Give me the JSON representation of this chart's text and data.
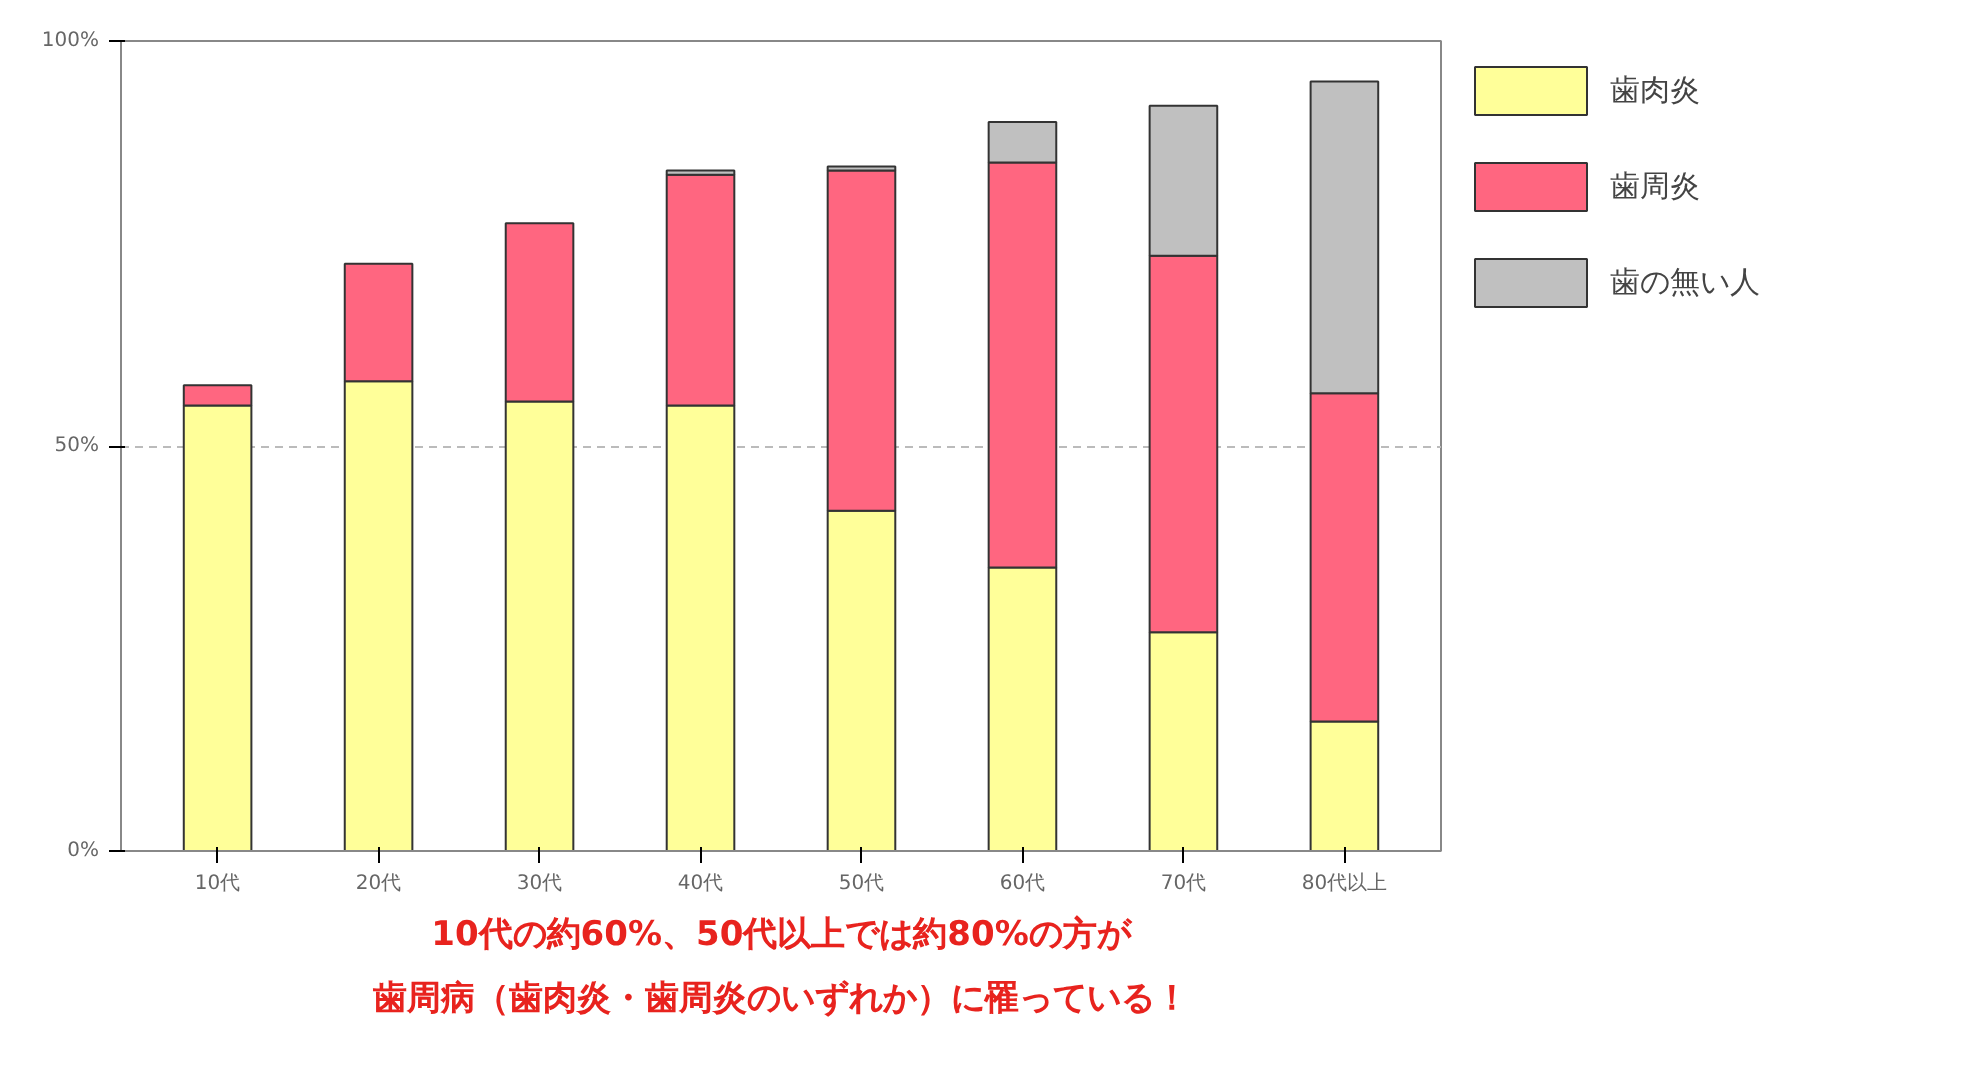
{
  "chart_data": {
    "type": "bar",
    "stacked": true,
    "categories": [
      "10代",
      "20代",
      "30代",
      "40代",
      "50代",
      "60代",
      "70代",
      "80代以上"
    ],
    "series": [
      {
        "name": "歯肉炎",
        "color": "#ffff99",
        "values": [
          55,
          58,
          55.5,
          55,
          42,
          35,
          27,
          16
        ]
      },
      {
        "name": "歯周炎",
        "color": "#ff6680",
        "values": [
          2.5,
          14.5,
          22,
          28.5,
          42,
          50,
          46.5,
          40.5
        ]
      },
      {
        "name": "歯の無い人",
        "color": "#c0c0c0",
        "values": [
          null,
          null,
          null,
          0.5,
          0.5,
          5,
          18.5,
          38.5
        ]
      }
    ],
    "ylim": [
      0,
      100
    ],
    "yticks": [
      {
        "value": 0,
        "label": "0%"
      },
      {
        "value": 50,
        "label": "50%"
      },
      {
        "value": 100,
        "label": "100%"
      }
    ],
    "grid": "y",
    "legend": "right",
    "annotations": [
      "10代の約60%、50代以上では約80%の方が",
      "歯周病（歯肉炎・歯周炎のいずれか）に罹っている！"
    ]
  }
}
